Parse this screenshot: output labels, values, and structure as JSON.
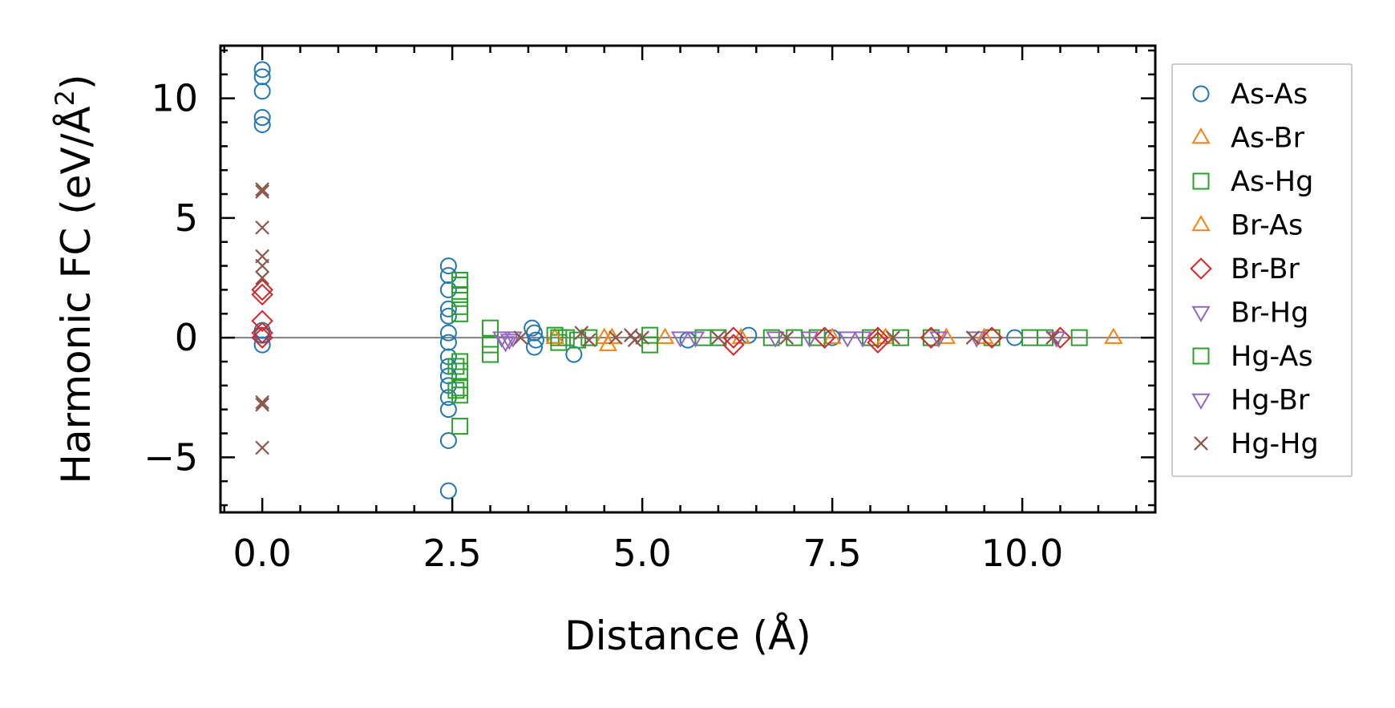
{
  "chart_data": {
    "type": "scatter",
    "title": "",
    "xlabel": "Distance (Å)",
    "ylabel": "Harmonic FC (eV/Å²)",
    "ylabel_main": "Harmonic FC (eV/Å",
    "ylabel_sup": "2",
    "ylabel_close": ")",
    "xlim": [
      -0.55,
      11.75
    ],
    "ylim": [
      -7.3,
      12.2
    ],
    "xticks": [
      0.0,
      2.5,
      5.0,
      7.5,
      10.0
    ],
    "xtick_labels": [
      "0.0",
      "2.5",
      "5.0",
      "7.5",
      "10.0"
    ],
    "yticks": [
      -5,
      0,
      5,
      10
    ],
    "ytick_labels": [
      "−5",
      "0",
      "5",
      "10"
    ],
    "grid": false,
    "zero_line": true,
    "legend_position": "outside-right",
    "series": [
      {
        "name": "As-As",
        "marker": "circle",
        "color": "#1f77b4",
        "points": [
          [
            0,
            11.2
          ],
          [
            0,
            10.9
          ],
          [
            0,
            10.3
          ],
          [
            0,
            9.2
          ],
          [
            0,
            8.9
          ],
          [
            0,
            0.3
          ],
          [
            0,
            0.1
          ],
          [
            0,
            -0.3
          ],
          [
            2.45,
            3.0
          ],
          [
            2.45,
            2.6
          ],
          [
            2.45,
            2.0
          ],
          [
            2.45,
            1.2
          ],
          [
            2.45,
            0.9
          ],
          [
            2.45,
            0.2
          ],
          [
            2.45,
            -0.2
          ],
          [
            2.45,
            -0.8
          ],
          [
            2.45,
            -1.2
          ],
          [
            2.45,
            -1.6
          ],
          [
            2.45,
            -2.0
          ],
          [
            2.45,
            -2.5
          ],
          [
            2.45,
            -3.0
          ],
          [
            2.45,
            -4.3
          ],
          [
            2.45,
            -6.4
          ],
          [
            3.55,
            0.4
          ],
          [
            3.58,
            0.2
          ],
          [
            3.6,
            -0.1
          ],
          [
            3.58,
            -0.4
          ],
          [
            4.1,
            -0.7
          ],
          [
            5.6,
            -0.1
          ],
          [
            6.4,
            0.1
          ],
          [
            7.5,
            0.0
          ],
          [
            9.9,
            0.0
          ]
        ]
      },
      {
        "name": "As-Br",
        "marker": "triangle-up",
        "color": "#ff7f0e",
        "points": [
          [
            4.5,
            0.0
          ],
          [
            4.55,
            -0.3
          ],
          [
            5.3,
            0.0
          ],
          [
            7.5,
            0.0
          ],
          [
            9.0,
            0.0
          ],
          [
            11.2,
            0.0
          ]
        ]
      },
      {
        "name": "As-Hg",
        "marker": "square",
        "color": "#2ca02c",
        "points": [
          [
            2.6,
            2.4
          ],
          [
            2.6,
            2.2
          ],
          [
            2.6,
            1.8
          ],
          [
            2.6,
            1.3
          ],
          [
            2.6,
            1.0
          ],
          [
            2.6,
            -1.0
          ],
          [
            2.6,
            -1.4
          ],
          [
            2.6,
            -2.1
          ],
          [
            2.6,
            -2.4
          ],
          [
            2.6,
            -3.7
          ],
          [
            3.0,
            0.4
          ],
          [
            3.0,
            -0.3
          ],
          [
            3.0,
            -0.7
          ],
          [
            3.85,
            0.1
          ],
          [
            3.9,
            -0.2
          ],
          [
            4.0,
            0.0
          ],
          [
            4.15,
            -0.1
          ],
          [
            4.3,
            0.0
          ],
          [
            5.1,
            0.1
          ],
          [
            5.1,
            -0.3
          ],
          [
            6.0,
            0.0
          ],
          [
            6.7,
            0.0
          ],
          [
            7.3,
            0.0
          ],
          [
            8.0,
            0.0
          ],
          [
            8.8,
            0.0
          ],
          [
            9.6,
            0.0
          ],
          [
            10.3,
            0.0
          ],
          [
            10.75,
            0.0
          ]
        ]
      },
      {
        "name": "Br-As",
        "marker": "triangle-up",
        "color": "#ff7f0e",
        "points": [
          [
            3.85,
            0.0
          ],
          [
            4.6,
            0.0
          ],
          [
            6.3,
            0.0
          ],
          [
            8.2,
            0.0
          ],
          [
            9.5,
            0.0
          ]
        ]
      },
      {
        "name": "Br-Br",
        "marker": "diamond",
        "color": "#d62728",
        "points": [
          [
            0,
            2.0
          ],
          [
            0,
            1.8
          ],
          [
            0,
            0.7
          ],
          [
            0,
            0.2
          ],
          [
            0,
            0.0
          ],
          [
            6.2,
            0.0
          ],
          [
            6.2,
            -0.3
          ],
          [
            7.4,
            0.0
          ],
          [
            8.1,
            0.0
          ],
          [
            8.1,
            -0.2
          ],
          [
            8.8,
            0.0
          ],
          [
            9.6,
            0.0
          ],
          [
            10.5,
            0.0
          ]
        ]
      },
      {
        "name": "Br-Hg",
        "marker": "triangle-down",
        "color": "#9467bd",
        "points": [
          [
            3.15,
            0.0
          ],
          [
            3.25,
            -0.1
          ],
          [
            3.3,
            0.0
          ],
          [
            5.5,
            0.0
          ],
          [
            6.75,
            0.0
          ],
          [
            7.2,
            0.0
          ],
          [
            7.7,
            0.0
          ],
          [
            8.9,
            0.0
          ]
        ]
      },
      {
        "name": "Hg-As",
        "marker": "square",
        "color": "#2ca02c",
        "points": [
          [
            2.55,
            -1.2
          ],
          [
            2.55,
            -2.2
          ],
          [
            3.9,
            0.0
          ],
          [
            5.8,
            0.0
          ],
          [
            7.0,
            0.0
          ],
          [
            8.4,
            0.0
          ],
          [
            10.1,
            0.0
          ]
        ]
      },
      {
        "name": "Hg-Br",
        "marker": "triangle-down",
        "color": "#9467bd",
        "points": [
          [
            3.2,
            -0.2
          ],
          [
            5.7,
            0.0
          ],
          [
            7.9,
            0.0
          ],
          [
            9.4,
            0.0
          ],
          [
            10.45,
            0.0
          ]
        ]
      },
      {
        "name": "Hg-Hg",
        "marker": "x",
        "color": "#8c564b",
        "points": [
          [
            0,
            6.2
          ],
          [
            0,
            6.1
          ],
          [
            0,
            4.6
          ],
          [
            0,
            3.4
          ],
          [
            0,
            3.0
          ],
          [
            0,
            2.5
          ],
          [
            0,
            -2.7
          ],
          [
            0,
            -2.8
          ],
          [
            0,
            -4.6
          ],
          [
            3.4,
            0.0
          ],
          [
            4.2,
            0.2
          ],
          [
            4.3,
            -0.1
          ],
          [
            4.65,
            0.0
          ],
          [
            4.85,
            0.1
          ],
          [
            4.9,
            -0.1
          ],
          [
            5.0,
            0.0
          ],
          [
            6.0,
            0.0
          ],
          [
            6.9,
            0.0
          ],
          [
            8.3,
            0.0
          ],
          [
            9.35,
            0.0
          ],
          [
            10.4,
            0.0
          ]
        ]
      }
    ]
  }
}
